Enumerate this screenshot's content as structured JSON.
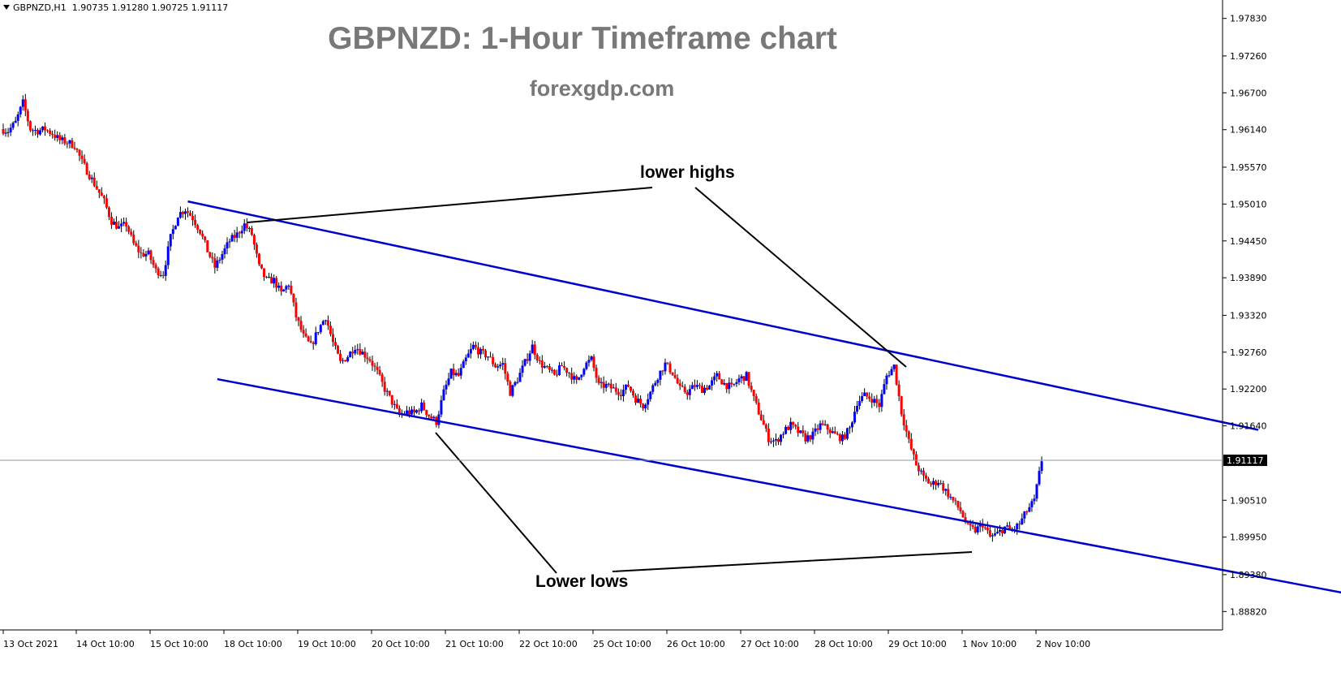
{
  "header": {
    "symbol": "GBPNZD,H1",
    "open": "1.90735",
    "high": "1.91280",
    "low": "1.90725",
    "close": "1.91117"
  },
  "title": "GBPNZD:  1-Hour Timeframe chart",
  "subtitle": "forexgdp.com",
  "annotations": {
    "upper": "lower highs",
    "lower": "Lower lows"
  },
  "colors": {
    "bull": "#0000ff",
    "bear": "#ff0000",
    "wick": "#000000",
    "channel": "#0000cd",
    "price_line": "#8898a8",
    "axis": "#000000"
  },
  "chart_data": {
    "type": "candlestick",
    "title": "GBPNZD:  1-Hour Timeframe chart",
    "symbol": "GBPNZD",
    "timeframe": "H1",
    "current_price": "1.91117",
    "ylim": [
      1.8854,
      1.9811
    ],
    "y_ticks": [
      "1.97830",
      "1.97260",
      "1.96700",
      "1.96140",
      "1.95570",
      "1.95010",
      "1.94450",
      "1.93890",
      "1.93320",
      "1.92760",
      "1.92200",
      "1.91640",
      "1.90510",
      "1.89950",
      "1.89380",
      "1.88820"
    ],
    "x_ticks": [
      "13 Oct 2021",
      "14 Oct 10:00",
      "15 Oct 10:00",
      "18 Oct 10:00",
      "19 Oct 10:00",
      "20 Oct 10:00",
      "21 Oct 10:00",
      "22 Oct 10:00",
      "25 Oct 10:00",
      "26 Oct 10:00",
      "27 Oct 10:00",
      "28 Oct 10:00",
      "29 Oct 10:00",
      "1 Nov 10:00",
      "2 Nov 10:00"
    ],
    "price_path": [
      [
        0,
        1.9615
      ],
      [
        1,
        1.9612
      ],
      [
        2,
        1.9625
      ],
      [
        3,
        1.9655
      ],
      [
        4,
        1.9615
      ],
      [
        5,
        1.9612
      ],
      [
        6,
        1.9615
      ],
      [
        7,
        1.9608
      ],
      [
        8,
        1.9598
      ],
      [
        9,
        1.9595
      ],
      [
        10,
        1.959
      ],
      [
        11,
        1.9565
      ],
      [
        12,
        1.9545
      ],
      [
        13,
        1.9525
      ],
      [
        14,
        1.9505
      ],
      [
        15,
        1.9475
      ],
      [
        16,
        1.9465
      ],
      [
        17,
        1.947
      ],
      [
        18,
        1.944
      ],
      [
        19,
        1.9425
      ],
      [
        20,
        1.9425
      ],
      [
        21,
        1.94
      ],
      [
        22,
        1.9395
      ],
      [
        23,
        1.945
      ],
      [
        24,
        1.9485
      ],
      [
        25,
        1.9493
      ],
      [
        26,
        1.948
      ],
      [
        27,
        1.946
      ],
      [
        28,
        1.943
      ],
      [
        29,
        1.9405
      ],
      [
        30,
        1.9425
      ],
      [
        31,
        1.9445
      ],
      [
        32,
        1.9455
      ],
      [
        33,
        1.947
      ],
      [
        34,
        1.9455
      ],
      [
        35,
        1.9405
      ],
      [
        36,
        1.9385
      ],
      [
        37,
        1.9385
      ],
      [
        38,
        1.9365
      ],
      [
        39,
        1.938
      ],
      [
        40,
        1.933
      ],
      [
        41,
        1.93
      ],
      [
        42,
        1.9285
      ],
      [
        43,
        1.931
      ],
      [
        44,
        1.933
      ],
      [
        45,
        1.929
      ],
      [
        46,
        1.926
      ],
      [
        47,
        1.927
      ],
      [
        48,
        1.9285
      ],
      [
        49,
        1.9275
      ],
      [
        50,
        1.9265
      ],
      [
        51,
        1.9245
      ],
      [
        52,
        1.922
      ],
      [
        53,
        1.92
      ],
      [
        54,
        1.918
      ],
      [
        55,
        1.9185
      ],
      [
        56,
        1.9183
      ],
      [
        57,
        1.9195
      ],
      [
        58,
        1.918
      ],
      [
        59,
        1.917
      ],
      [
        60,
        1.9215
      ],
      [
        61,
        1.9245
      ],
      [
        62,
        1.924
      ],
      [
        63,
        1.9265
      ],
      [
        64,
        1.9285
      ],
      [
        65,
        1.9275
      ],
      [
        66,
        1.927
      ],
      [
        67,
        1.9255
      ],
      [
        68,
        1.9258
      ],
      [
        69,
        1.9215
      ],
      [
        70,
        1.9235
      ],
      [
        71,
        1.926
      ],
      [
        72,
        1.9285
      ],
      [
        73,
        1.926
      ],
      [
        74,
        1.925
      ],
      [
        75,
        1.924
      ],
      [
        76,
        1.9255
      ],
      [
        77,
        1.9245
      ],
      [
        78,
        1.923
      ],
      [
        79,
        1.9255
      ],
      [
        80,
        1.9265
      ],
      [
        81,
        1.9225
      ],
      [
        82,
        1.9225
      ],
      [
        83,
        1.922
      ],
      [
        84,
        1.9215
      ],
      [
        85,
        1.9225
      ],
      [
        86,
        1.9205
      ],
      [
        87,
        1.9195
      ],
      [
        88,
        1.9215
      ],
      [
        89,
        1.924
      ],
      [
        90,
        1.9258
      ],
      [
        91,
        1.9245
      ],
      [
        92,
        1.922
      ],
      [
        93,
        1.9215
      ],
      [
        94,
        1.9225
      ],
      [
        95,
        1.922
      ],
      [
        96,
        1.9225
      ],
      [
        97,
        1.924
      ],
      [
        98,
        1.9228
      ],
      [
        99,
        1.9222
      ],
      [
        100,
        1.9235
      ],
      [
        101,
        1.924
      ],
      [
        102,
        1.9205
      ],
      [
        103,
        1.9175
      ],
      [
        104,
        1.9145
      ],
      [
        105,
        1.914
      ],
      [
        106,
        1.9155
      ],
      [
        107,
        1.9165
      ],
      [
        108,
        1.9155
      ],
      [
        109,
        1.9145
      ],
      [
        110,
        1.915
      ],
      [
        111,
        1.9165
      ],
      [
        112,
        1.916
      ],
      [
        113,
        1.915
      ],
      [
        114,
        1.9145
      ],
      [
        115,
        1.916
      ],
      [
        116,
        1.92
      ],
      [
        117,
        1.921
      ],
      [
        118,
        1.9205
      ],
      [
        119,
        1.9195
      ],
      [
        120,
        1.924
      ],
      [
        121,
        1.9255
      ],
      [
        122,
        1.9185
      ],
      [
        123,
        1.914
      ],
      [
        124,
        1.9105
      ],
      [
        125,
        1.9085
      ],
      [
        126,
        1.9075
      ],
      [
        127,
        1.908
      ],
      [
        128,
        1.9065
      ],
      [
        129,
        1.905
      ],
      [
        130,
        1.9035
      ],
      [
        131,
        1.901
      ],
      [
        132,
        1.9005
      ],
      [
        133,
        1.9015
      ],
      [
        134,
        1.8995
      ],
      [
        135,
        1.9
      ],
      [
        136,
        1.901
      ],
      [
        137,
        1.9005
      ],
      [
        138,
        1.9015
      ],
      [
        139,
        1.9035
      ],
      [
        140,
        1.905
      ],
      [
        141,
        1.9112
      ]
    ],
    "channel": {
      "upper": [
        [
          25,
          1.9505
        ],
        [
          170,
          1.9158
        ]
      ],
      "lower": [
        [
          29,
          1.9235
        ],
        [
          184,
          1.8905
        ]
      ]
    }
  }
}
